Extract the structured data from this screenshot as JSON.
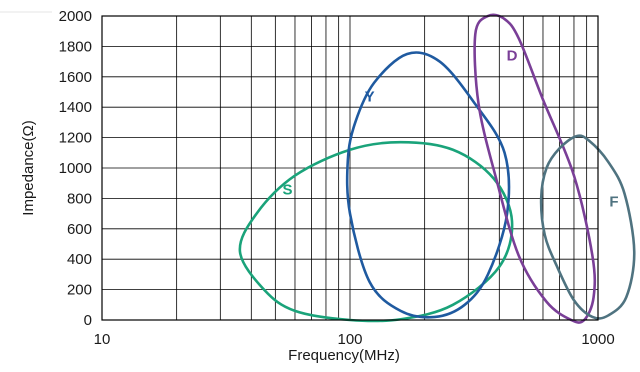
{
  "chart_data": {
    "type": "scatter",
    "title": "",
    "xlabel": "Frequency(MHz)",
    "ylabel": "Impedance(Ω)",
    "x_scale": "log",
    "xlim": [
      10,
      1000
    ],
    "ylim": [
      0,
      2000
    ],
    "x_ticks": [
      {
        "value": 10,
        "label": "10"
      },
      {
        "value": 100,
        "label": "100"
      },
      {
        "value": 1000,
        "label": "1000"
      }
    ],
    "y_ticks": [
      {
        "value": 0,
        "label": "0"
      },
      {
        "value": 200,
        "label": "200"
      },
      {
        "value": 400,
        "label": "400"
      },
      {
        "value": 600,
        "label": "600"
      },
      {
        "value": 800,
        "label": "800"
      },
      {
        "value": 1000,
        "label": "1000"
      },
      {
        "value": 1200,
        "label": "1200"
      },
      {
        "value": 1400,
        "label": "1400"
      },
      {
        "value": 1600,
        "label": "1600"
      },
      {
        "value": 1800,
        "label": "1800"
      },
      {
        "value": 2000,
        "label": "2000"
      }
    ],
    "grid": true,
    "series": [
      {
        "name": "S",
        "color": "#1aa37a",
        "shape": "ellipse",
        "boundary": [
          [
            36,
            450
          ],
          [
            42,
            700
          ],
          [
            60,
            950
          ],
          [
            100,
            1120
          ],
          [
            160,
            1170
          ],
          [
            260,
            1120
          ],
          [
            380,
            930
          ],
          [
            450,
            650
          ],
          [
            400,
            350
          ],
          [
            260,
            100
          ],
          [
            160,
            5
          ],
          [
            100,
            0
          ],
          [
            60,
            60
          ],
          [
            45,
            200
          ],
          [
            36,
            450
          ]
        ],
        "label_at": [
          56,
          860
        ]
      },
      {
        "name": "Y",
        "color": "#1f5aa0",
        "shape": "ellipse",
        "boundary": [
          [
            98,
            1050
          ],
          [
            105,
            1300
          ],
          [
            125,
            1560
          ],
          [
            170,
            1750
          ],
          [
            230,
            1700
          ],
          [
            320,
            1420
          ],
          [
            420,
            1100
          ],
          [
            430,
            700
          ],
          [
            360,
            300
          ],
          [
            290,
            100
          ],
          [
            220,
            20
          ],
          [
            160,
            60
          ],
          [
            120,
            250
          ],
          [
            100,
            700
          ],
          [
            98,
            1050
          ]
        ],
        "label_at": [
          120,
          1470
        ]
      },
      {
        "name": "D",
        "color": "#7a3f97",
        "shape": "ellipse",
        "boundary": [
          [
            320,
            1880
          ],
          [
            360,
            2000
          ],
          [
            420,
            1980
          ],
          [
            480,
            1850
          ],
          [
            600,
            1450
          ],
          [
            800,
            950
          ],
          [
            950,
            420
          ],
          [
            960,
            150
          ],
          [
            880,
            0
          ],
          [
            780,
            0
          ],
          [
            620,
            120
          ],
          [
            480,
            420
          ],
          [
            390,
            920
          ],
          [
            330,
            1420
          ],
          [
            320,
            1880
          ]
        ],
        "label_at": [
          450,
          1740
        ]
      },
      {
        "name": "F",
        "color": "#4f7380",
        "shape": "ellipse",
        "boundary": [
          [
            590,
            800
          ],
          [
            620,
            1000
          ],
          [
            700,
            1130
          ],
          [
            820,
            1210
          ],
          [
            920,
            1180
          ],
          [
            1100,
            1040
          ],
          [
            1280,
            830
          ],
          [
            1400,
            450
          ],
          [
            1300,
            150
          ],
          [
            1100,
            30
          ],
          [
            950,
            20
          ],
          [
            800,
            130
          ],
          [
            680,
            360
          ],
          [
            610,
            560
          ],
          [
            590,
            800
          ]
        ],
        "label_at": [
          1160,
          780
        ]
      }
    ]
  }
}
